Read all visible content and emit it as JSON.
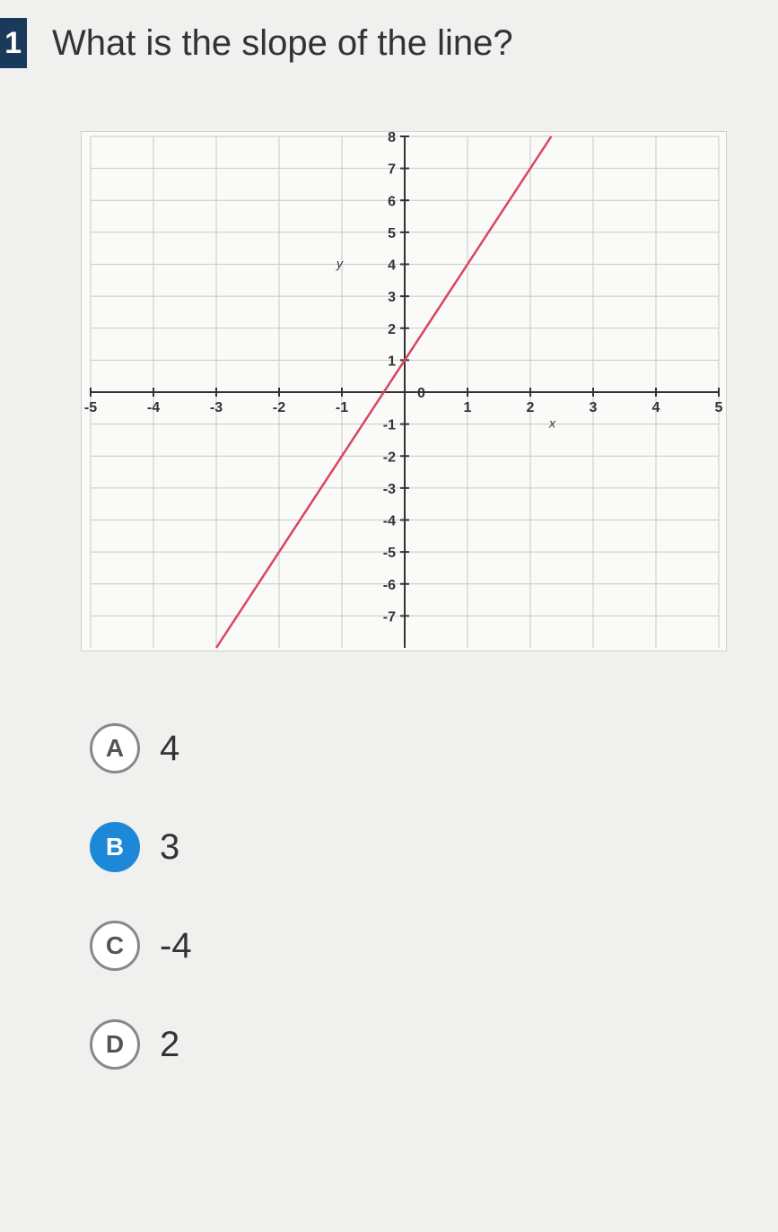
{
  "question": {
    "number": "1",
    "text": "What is the slope of the line?"
  },
  "graph": {
    "type": "line",
    "x_label": "x",
    "y_label": "y",
    "xlim": [
      -5,
      5
    ],
    "ylim": [
      -8,
      8
    ],
    "xticks": [
      -5,
      -4,
      -3,
      -2,
      -1,
      0,
      1,
      2,
      3,
      4,
      5
    ],
    "yticks": [
      -7,
      -6,
      -5,
      -4,
      -3,
      -2,
      -1,
      0,
      1,
      2,
      3,
      4,
      5,
      6,
      7,
      8
    ],
    "grid_color": "#c8c8c6",
    "axis_color": "#333333",
    "tick_color": "#333333",
    "tick_fontsize": 16,
    "background_color": "#fafaf8",
    "line": {
      "color": "#d9455f",
      "width": 2.5,
      "points": [
        [
          -3,
          -8
        ],
        [
          1,
          4
        ],
        [
          2.333,
          8
        ]
      ],
      "slope": 3,
      "y_intercept": 1
    }
  },
  "answers": {
    "options": [
      {
        "letter": "A",
        "label": "4",
        "selected": false
      },
      {
        "letter": "B",
        "label": "3",
        "selected": true
      },
      {
        "letter": "C",
        "label": "-4",
        "selected": false
      },
      {
        "letter": "D",
        "label": "2",
        "selected": false
      }
    ]
  }
}
